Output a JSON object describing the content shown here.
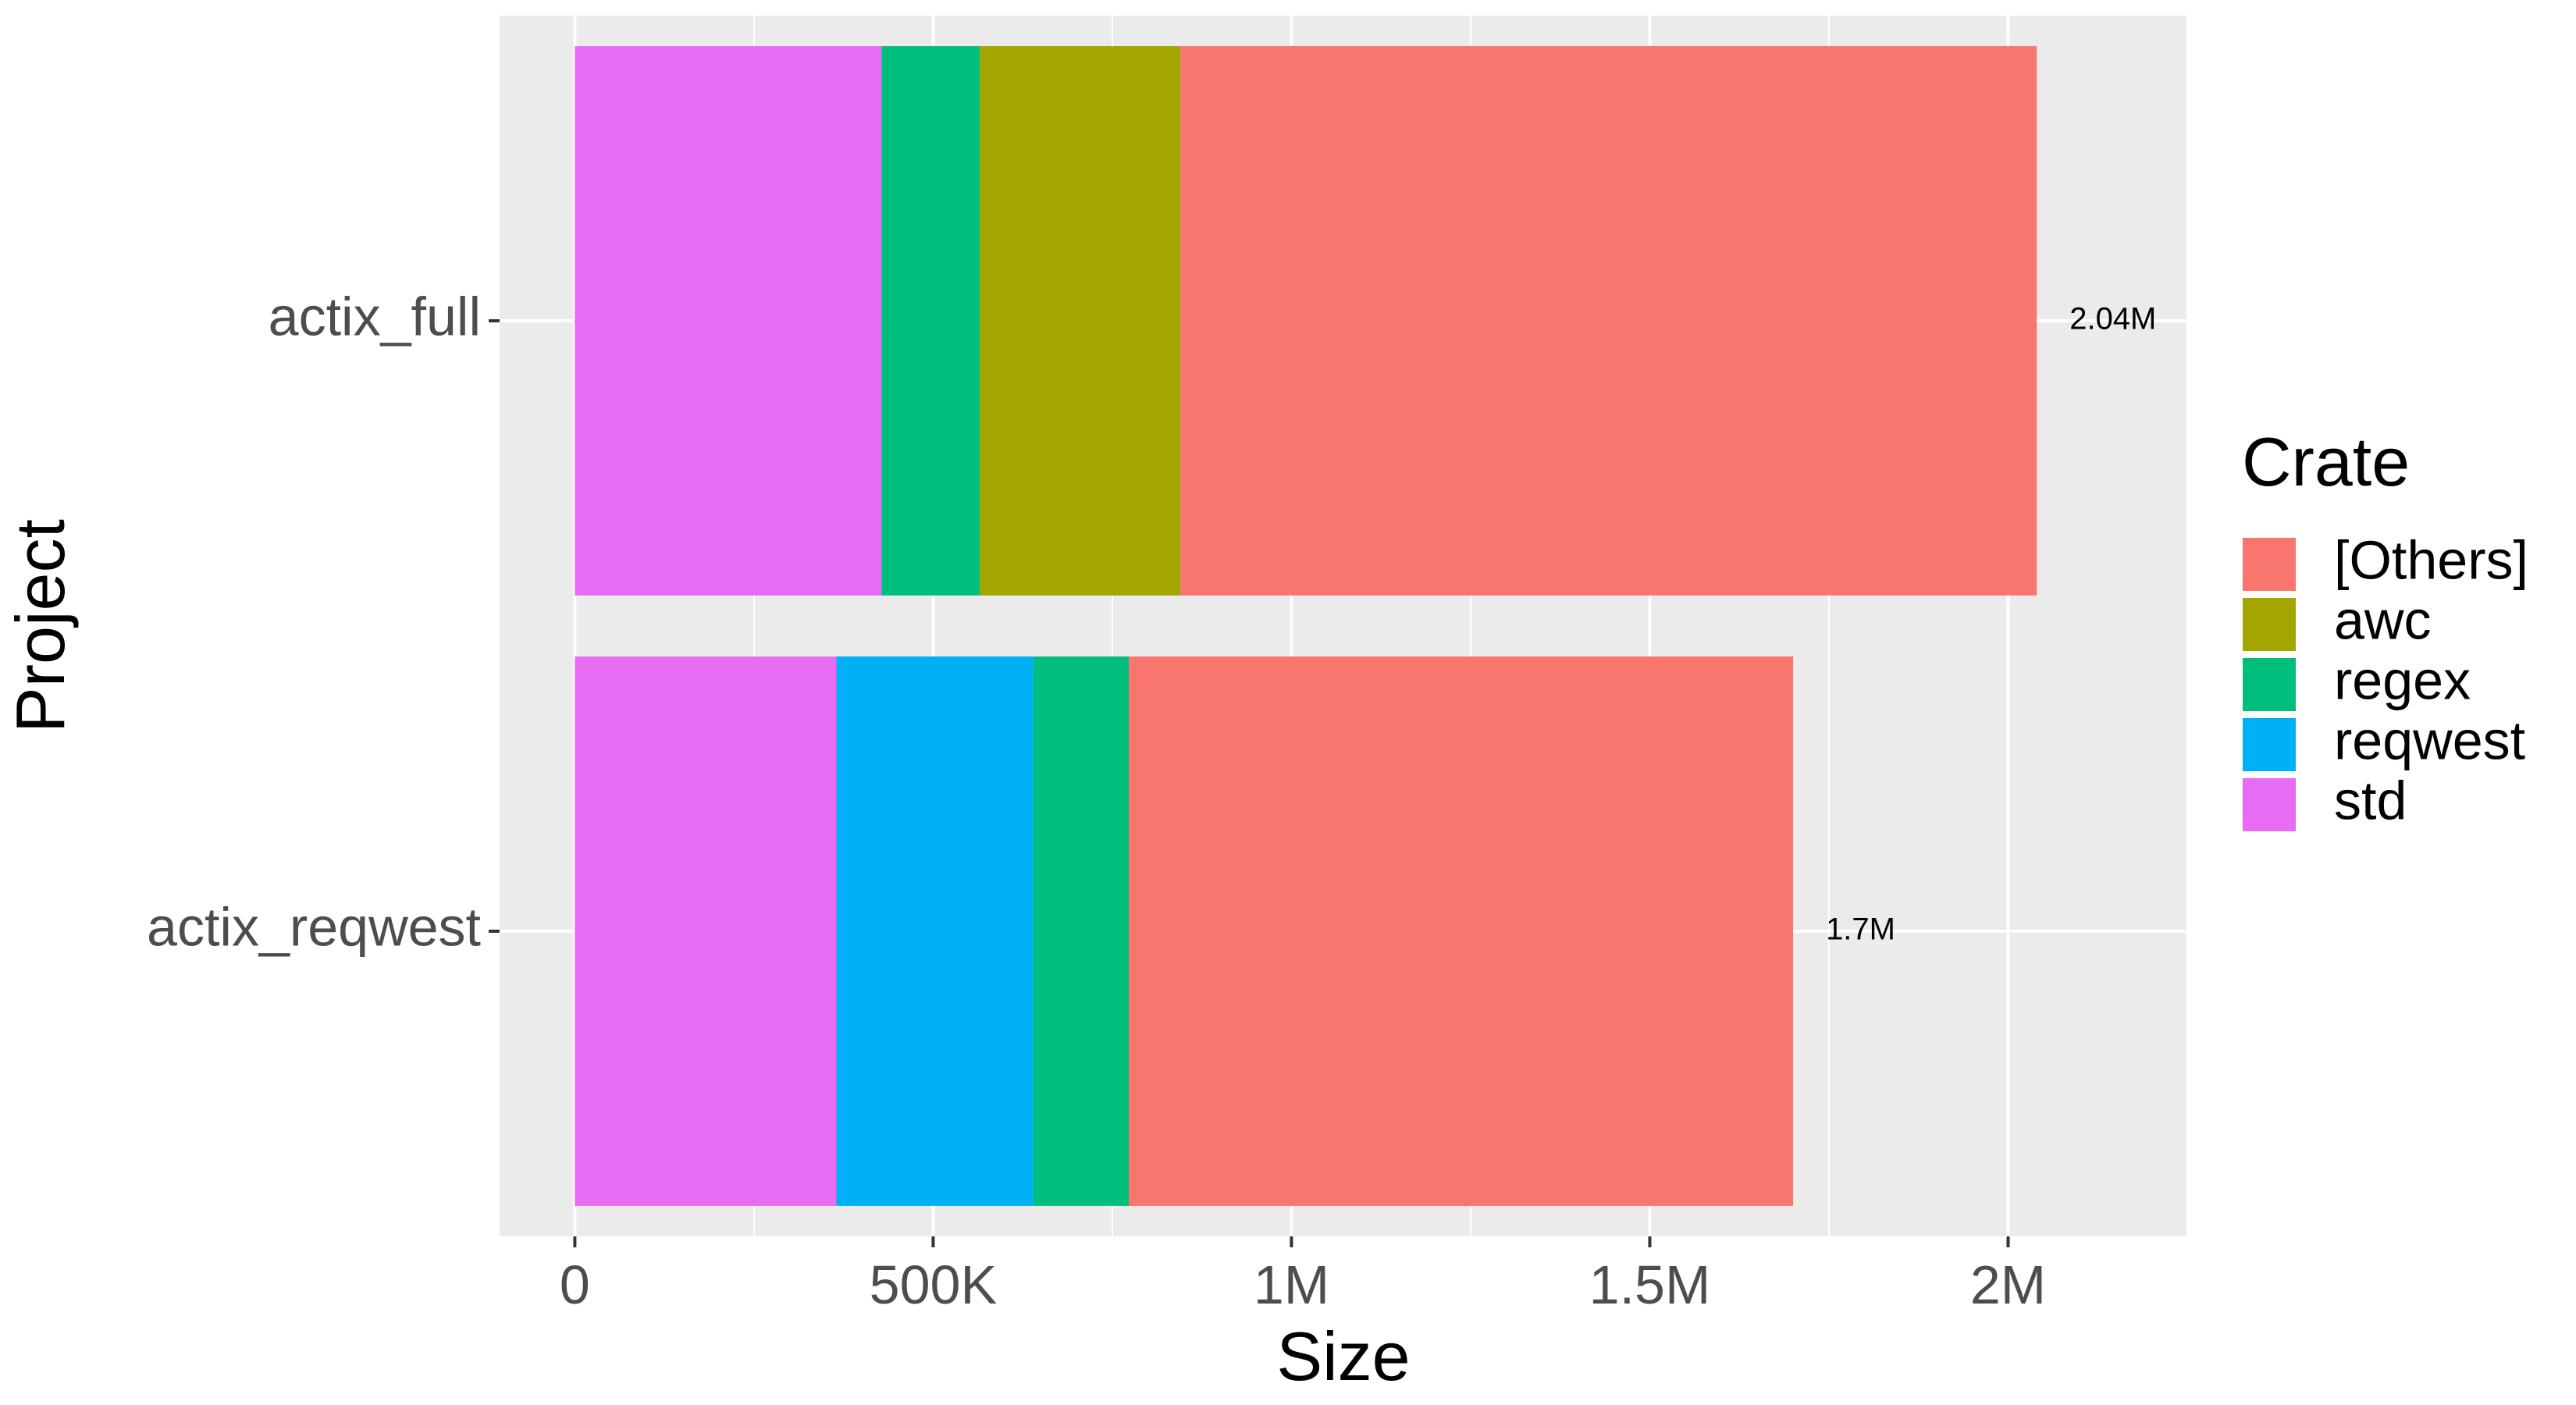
{
  "chart_data": {
    "type": "bar",
    "orientation": "horizontal",
    "stacked": true,
    "xlabel": "Size",
    "ylabel": "Project",
    "xlim": [
      -105000,
      2250000
    ],
    "x_ticks": [
      0,
      500000,
      1000000,
      1500000,
      2000000
    ],
    "x_tick_labels": [
      "0",
      "500K",
      "1M",
      "1.5M",
      "2M"
    ],
    "x_minor_ticks": [
      250000,
      750000,
      1250000,
      1750000,
      2250000
    ],
    "categories": [
      "actix_reqwest",
      "actix_full"
    ],
    "series": [
      {
        "name": "std",
        "color": "#E76BF3",
        "values": [
          365000,
          428000
        ]
      },
      {
        "name": "reqwest",
        "color": "#00B0F6",
        "values": [
          275000,
          0
        ]
      },
      {
        "name": "regex",
        "color": "#00BF7D",
        "values": [
          133000,
          137000
        ]
      },
      {
        "name": "awc",
        "color": "#A3A500",
        "values": [
          0,
          280000
        ]
      },
      {
        "name": "[Others]",
        "color": "#F8766D",
        "values": [
          927000,
          1195000
        ]
      }
    ],
    "totals": [
      1700000,
      2040000
    ],
    "total_labels": [
      "1.7M",
      "2.04M"
    ],
    "legend": {
      "title": "Crate",
      "placement": "right",
      "entries": [
        {
          "name": "[Others]",
          "color": "#F8766D"
        },
        {
          "name": "awc",
          "color": "#A3A500"
        },
        {
          "name": "regex",
          "color": "#00BF7D"
        },
        {
          "name": "reqwest",
          "color": "#00B0F6"
        },
        {
          "name": "std",
          "color": "#E76BF3"
        }
      ]
    },
    "grid": true,
    "panel_background": "#EBEBEB",
    "grid_color": "#FFFFFF"
  }
}
